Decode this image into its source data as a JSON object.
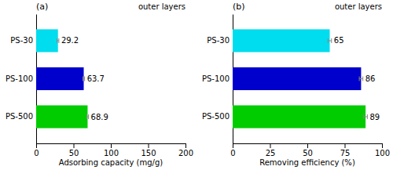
{
  "chart_data": [
    {
      "type": "bar",
      "orientation": "horizontal",
      "title": "(a)",
      "categories": [
        "PS-500",
        "PS-100",
        "PS-30"
      ],
      "values": [
        68.9,
        63.7,
        29.2
      ],
      "errors": [
        1.2,
        1.2,
        1.2
      ],
      "colors": [
        "#00CC00",
        "#0000CC",
        "#00DDEE"
      ],
      "xlabel": "Adsorbing capacity (mg/g)",
      "xlim": [
        0,
        200
      ],
      "xticks": [
        0,
        50,
        100,
        150,
        200
      ],
      "annotations": [
        "outer layers"
      ],
      "data_labels": true
    },
    {
      "type": "bar",
      "orientation": "horizontal",
      "title": "(b)",
      "categories": [
        "PS-500",
        "PS-100",
        "PS-30"
      ],
      "values": [
        89,
        86,
        65
      ],
      "errors": [
        1.2,
        1.2,
        1.2
      ],
      "colors": [
        "#00CC00",
        "#0000CC",
        "#00DDEE"
      ],
      "xlabel": "Removing efficiency (%)",
      "xlim": [
        0,
        100
      ],
      "xticks": [
        0,
        25,
        50,
        75,
        100
      ],
      "annotations": [
        "outer layers"
      ],
      "data_labels": true
    }
  ]
}
